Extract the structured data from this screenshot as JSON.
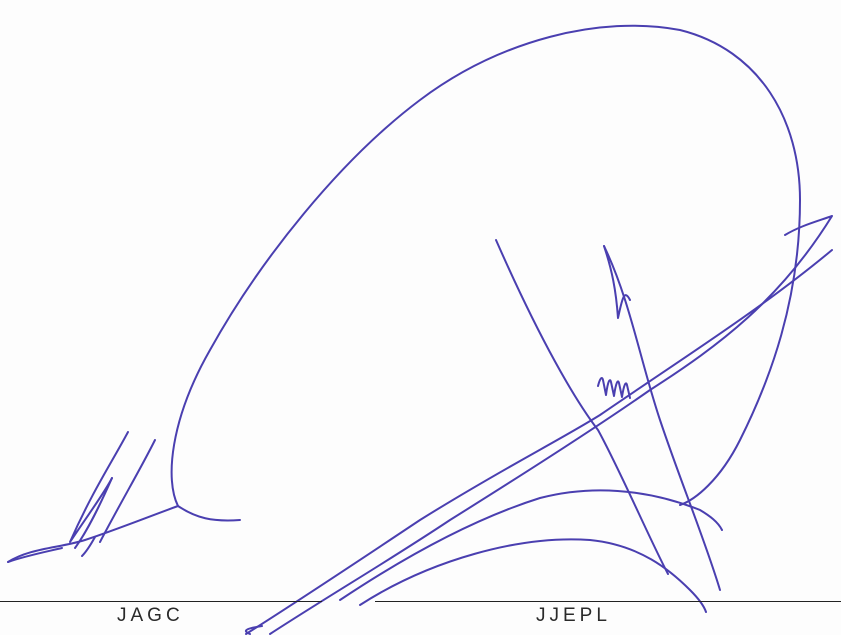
{
  "signatures": {
    "left": {
      "name": "JAGC"
    },
    "right": {
      "name": "JJEPL"
    }
  },
  "ink_color": "#4a3fb0",
  "line_color": "#222222"
}
